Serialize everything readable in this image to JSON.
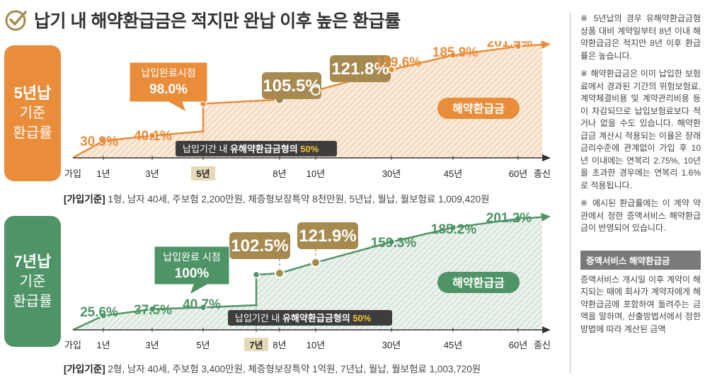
{
  "title": "납기 내 해약환급금은 적지만 완납 이후 높은 환급률",
  "colors": {
    "orange": "#e98d3b",
    "orange_light": "#f7ddc4",
    "gold": "#a78a4f",
    "gold_dark": "#8a7040",
    "green": "#4e9466",
    "green_light": "#dde9df",
    "gray_dark": "#444444"
  },
  "icons": {
    "title": "check-circle-icon"
  },
  "chart_data": [
    {
      "type": "area",
      "badge": {
        "line1": "5년납",
        "line2": "기준",
        "line3": "환급률"
      },
      "categories": [
        "가입",
        "1년",
        "3년",
        "5년",
        "8년",
        "10년",
        "30년",
        "45년",
        "60년",
        "종신"
      ],
      "points": [
        {
          "x": "1년",
          "value": 30.9,
          "label": "30.9%"
        },
        {
          "x": "3년",
          "value": 40.1,
          "label": "40.1%"
        },
        {
          "x": "5년",
          "value": 98.0,
          "label": "98.0%"
        },
        {
          "x": "8년",
          "value": 105.5,
          "label": "105.5%"
        },
        {
          "x": "10년",
          "value": 121.8,
          "label": "121.8%"
        },
        {
          "x": "30년",
          "value": 159.6,
          "label": "159.6%"
        },
        {
          "x": "45년",
          "value": 185.9,
          "label": "185.9%"
        },
        {
          "x": "60년",
          "value": 201.9,
          "label": "201.9%"
        }
      ],
      "highlight_tick": "5년",
      "callout": {
        "line1": "납입완료시점",
        "line2": "98.0%"
      },
      "series_label": "해약환급금",
      "note": {
        "prefix": "납입기간 내 ",
        "bold": "유해약환급금형의 ",
        "accent": "50%"
      },
      "basis": {
        "label": "[가입기준]",
        "text": " 1형, 남자 40세, 주보험 2,200만원, 체증형보장특약 8천만원, 5년납, 월납, 월보험료 1,009,420원"
      }
    },
    {
      "type": "area",
      "badge": {
        "line1": "7년납",
        "line2": "기준",
        "line3": "환급률"
      },
      "categories": [
        "가입",
        "1년",
        "3년",
        "5년",
        "7년",
        "8년",
        "10년",
        "30년",
        "45년",
        "60년",
        "종신"
      ],
      "points": [
        {
          "x": "1년",
          "value": 25.6,
          "label": "25.6%"
        },
        {
          "x": "3년",
          "value": 37.5,
          "label": "37.5%"
        },
        {
          "x": "5년",
          "value": 40.7,
          "label": "40.7%"
        },
        {
          "x": "7년",
          "value": 100,
          "label": "100%"
        },
        {
          "x": "8년",
          "value": 102.5,
          "label": "102.5%"
        },
        {
          "x": "10년",
          "value": 121.9,
          "label": "121.9%"
        },
        {
          "x": "30년",
          "value": 159.3,
          "label": "159.3%"
        },
        {
          "x": "45년",
          "value": 185.2,
          "label": "185.2%"
        },
        {
          "x": "60년",
          "value": 201.2,
          "label": "201.2%"
        }
      ],
      "highlight_tick": "7년",
      "callout": {
        "line1": "납입완료 시점",
        "line2": "100%"
      },
      "series_label": "해약환급금",
      "note": {
        "prefix": "납입기간 내 ",
        "bold": "유해약환급금형의 ",
        "accent": "50%"
      },
      "basis": {
        "label": "[가입기준]",
        "text": " 2형, 남자 40세, 주보험 3,400만원, 체증형보장특약 1억원, 7년납, 월납, 월보험료 1,003,720원"
      }
    }
  ],
  "side": {
    "notes": [
      "※ 5년납의 경우 유해약환급금형 상품 대비 계약일부터 8년 이내 해약환급금은 적지만 8년 이후 환급률은 높습니다.",
      "※ 해약환급금은 이미 납입한 보험료에서 경과된 기간의 위험보험료, 계약체결비용 및 계약관리비용 등이 차감되므로 납입보험료보다 적거나 없을 수도 있습니다. 해약환급금 계산시 적용되는 이율은 장래 금리수준에 관계없이 가입 후 10년 이내에는 연복리 2.75%, 10년을 초과한 경우에는 연복리 1.6%로 적용됩니다.",
      "※ 예시된 환급률에는 이 계약 약관에서 정한 증액서비스 해약환급금이 반영되어 있습니다."
    ],
    "heading": "증액서비스 해약환급금",
    "body": "증액서비스 개시일 이후 계약이 해지되는 때에 회사가 계약자에게 해약환급금에 포함하여 돌려주는 금액을 말하며, 산출방법서에서 정한 방법에 따라 계산된 금액"
  }
}
